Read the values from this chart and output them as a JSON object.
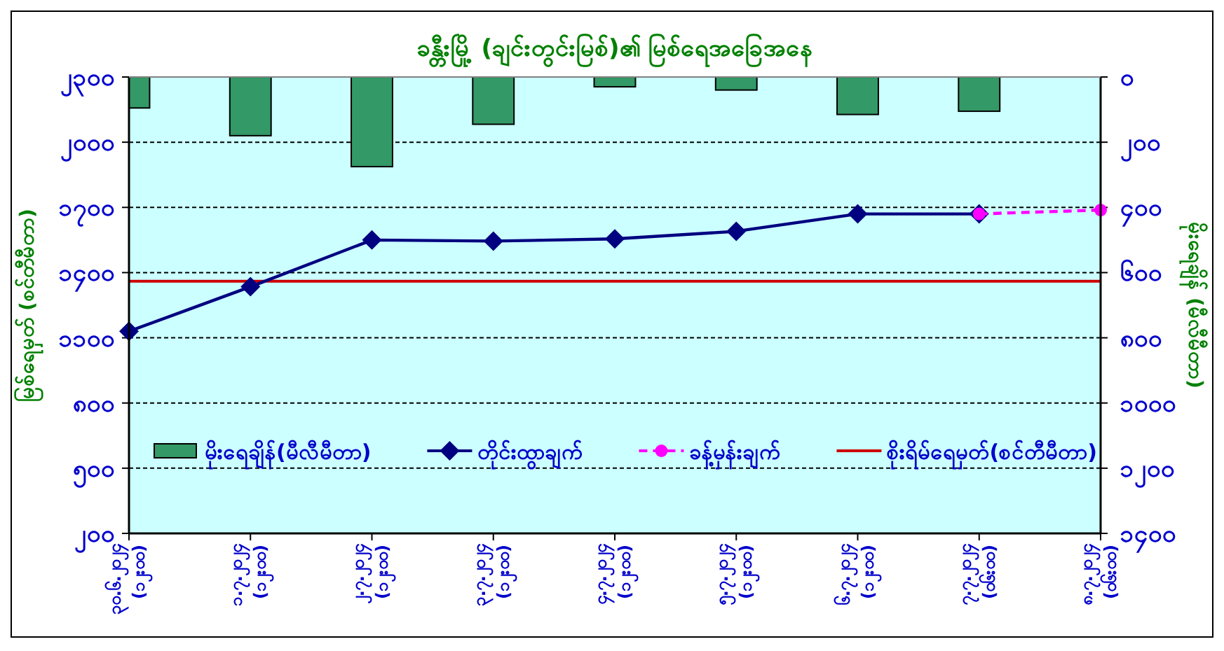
{
  "chart_data": {
    "type": "line",
    "title": "ခန္တီးမြို့ (ချင်းတွင်းမြစ်)၏ မြစ်ရေအခြေအနေ",
    "ylabel": "မြစ်ရေမှတ် (စင်တီမီတာ)",
    "y2label": "မိုးရေချိန် (မီလီမီတာ)",
    "categories": [
      "၃၀.၆.၂၀၂၄ (၁၂း၀၀)",
      "၁.၇.၂၀၂၄ (၁၂း၀၀)",
      "၂.၇.၂၀၂၄ (၁၂း၀၀)",
      "၃.၇.၂၀၂၄ (၁၂း၀၀)",
      "၄.၇.၂၀၂၄ (၁၂း၀၀)",
      "၅.၇.၂၀၂၄ (၁၂း၀၀)",
      "၆.၇.၂၀၂၄ (၁၂း၀၀)",
      "၇.၇.၂၀၂၄ (၀၆း၀၀)",
      "၈.၇.၂၀၂၄ (၀၆း၀၀)"
    ],
    "series": [
      {
        "name": "မိုးရေချိန်(မီလီမီတာ)",
        "type": "bar",
        "axis": "y2",
        "color": "#339966",
        "values": [
          95,
          180,
          275,
          145,
          30,
          40,
          115,
          105,
          null
        ]
      },
      {
        "name": "တိုင်းထွာချက်",
        "color": "#000080",
        "marker": "diamond",
        "line_style": "solid",
        "values": [
          1130,
          1335,
          1550,
          1545,
          1555,
          1590,
          1670,
          1670,
          null
        ]
      },
      {
        "name": "ခန့်မှန်းချက်",
        "color": "#ff00ff",
        "marker": "circle",
        "line_style": "dashed",
        "values": [
          null,
          null,
          null,
          null,
          null,
          null,
          null,
          1670,
          1688
        ]
      }
    ],
    "ylim": [
      200,
      2300
    ],
    "yticks": [
      {
        "value": 200,
        "label": "၂၀၀"
      },
      {
        "value": 500,
        "label": "၅၀၀"
      },
      {
        "value": 800,
        "label": "၈၀၀"
      },
      {
        "value": 1100,
        "label": "၁၁၀၀"
      },
      {
        "value": 1400,
        "label": "၁၄၀၀"
      },
      {
        "value": 1700,
        "label": "၁၇၀၀"
      },
      {
        "value": 2000,
        "label": "၂၀၀၀"
      },
      {
        "value": 2300,
        "label": "၂၃၀၀"
      }
    ],
    "y2lim": [
      1400,
      0
    ],
    "y2ticks": [
      {
        "value": 0,
        "label": "၀"
      },
      {
        "value": 200,
        "label": "၂၀၀"
      },
      {
        "value": 400,
        "label": "၄၀၀"
      },
      {
        "value": 600,
        "label": "၆၀၀"
      },
      {
        "value": 800,
        "label": "၈၀၀"
      },
      {
        "value": 1000,
        "label": "၁၀၀၀"
      },
      {
        "value": 1200,
        "label": "၁၂၀၀"
      },
      {
        "value": 1400,
        "label": "၁၄၀၀"
      }
    ],
    "ref_lines": [
      {
        "axis": "y",
        "value": 1360,
        "label": "စိုးရိမ်ရေမှတ်(စင်တီမီတာ)",
        "color": "#cc0000"
      }
    ],
    "grid": "y",
    "legend": "bottom"
  }
}
